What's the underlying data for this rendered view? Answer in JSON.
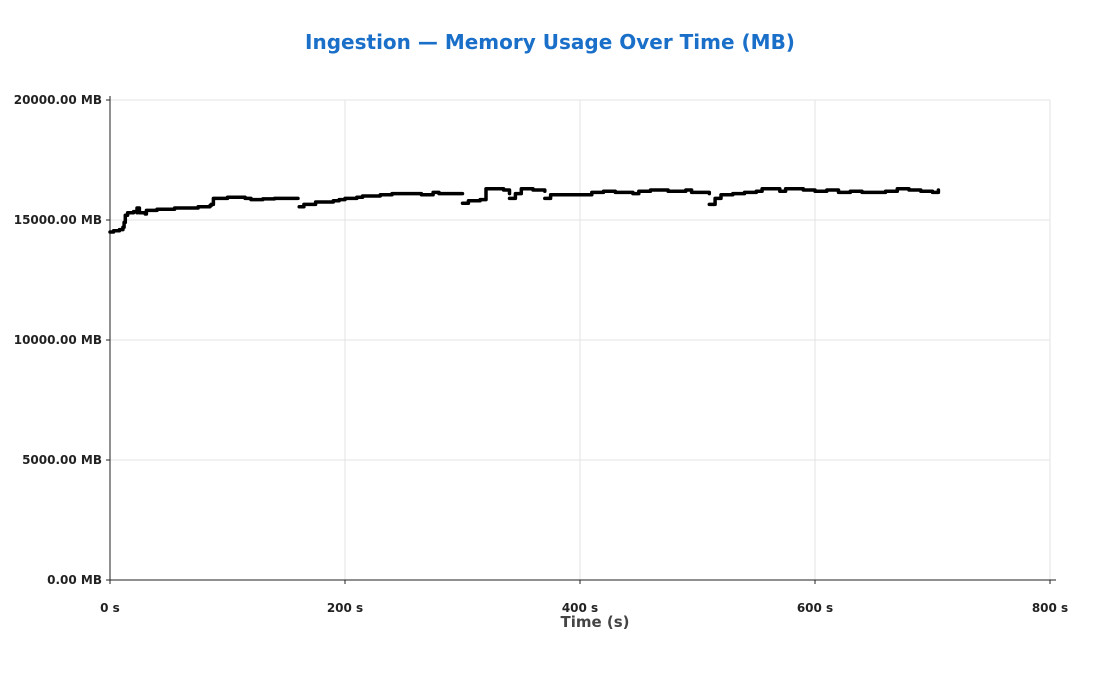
{
  "chart_data": {
    "type": "line",
    "title": "Ingestion — Memory Usage Over Time (MB)",
    "xlabel": "Time (s)",
    "ylabel": "",
    "xlim": [
      0,
      800
    ],
    "ylim": [
      0,
      20000
    ],
    "x_ticks": [
      0,
      200,
      400,
      600,
      800
    ],
    "x_tick_labels": [
      "0 s",
      "200 s",
      "400 s",
      "600 s",
      "800 s"
    ],
    "y_ticks": [
      0,
      5000,
      10000,
      15000,
      20000
    ],
    "y_tick_labels": [
      "0.00 MB",
      "5000.00 MB",
      "10000.00 MB",
      "15000.00 MB",
      "20000.00 MB"
    ],
    "grid": true,
    "colors": {
      "line": "#000000",
      "title": "#1a6fc9"
    },
    "series": [
      {
        "segments": [
          [
            [
              0,
              14500
            ],
            [
              3,
              14550
            ],
            [
              8,
              14600
            ],
            [
              11,
              14700
            ],
            [
              12,
              14900
            ],
            [
              13,
              15200
            ],
            [
              15,
              15300
            ],
            [
              20,
              15350
            ],
            [
              23,
              15300
            ],
            [
              23,
              15500
            ],
            [
              25,
              15300
            ],
            [
              30,
              15250
            ],
            [
              31,
              15400
            ],
            [
              40,
              15450
            ],
            [
              50,
              15450
            ],
            [
              55,
              15500
            ],
            [
              70,
              15500
            ],
            [
              75,
              15550
            ],
            [
              85,
              15600
            ],
            [
              86,
              15650
            ],
            [
              88,
              15650
            ],
            [
              88,
              15900
            ],
            [
              100,
              15950
            ],
            [
              110,
              15950
            ],
            [
              115,
              15900
            ],
            [
              120,
              15850
            ],
            [
              130,
              15880
            ],
            [
              140,
              15900
            ],
            [
              160,
              15900
            ]
          ],
          [
            [
              161,
              15550
            ],
            [
              165,
              15650
            ],
            [
              175,
              15750
            ],
            [
              190,
              15800
            ],
            [
              195,
              15850
            ],
            [
              200,
              15900
            ],
            [
              210,
              15950
            ],
            [
              215,
              16000
            ],
            [
              230,
              16050
            ],
            [
              235,
              16050
            ],
            [
              240,
              16100
            ],
            [
              250,
              16100
            ],
            [
              265,
              16050
            ],
            [
              275,
              16150
            ],
            [
              280,
              16100
            ],
            [
              300,
              16100
            ]
          ],
          [
            [
              300,
              15700
            ],
            [
              305,
              15800
            ],
            [
              315,
              15850
            ],
            [
              320,
              15900
            ],
            [
              320,
              16300
            ],
            [
              330,
              16300
            ],
            [
              335,
              16250
            ],
            [
              340,
              16100
            ]
          ],
          [
            [
              340,
              15900
            ],
            [
              345,
              16100
            ],
            [
              350,
              16300
            ],
            [
              360,
              16250
            ],
            [
              370,
              16200
            ]
          ],
          [
            [
              370,
              15900
            ],
            [
              375,
              16050
            ],
            [
              390,
              16050
            ],
            [
              400,
              16050
            ],
            [
              410,
              16150
            ],
            [
              420,
              16200
            ],
            [
              430,
              16150
            ],
            [
              445,
              16100
            ],
            [
              450,
              16200
            ],
            [
              460,
              16250
            ],
            [
              475,
              16200
            ],
            [
              490,
              16250
            ],
            [
              495,
              16150
            ],
            [
              510,
              16100
            ]
          ],
          [
            [
              510,
              15650
            ],
            [
              515,
              15900
            ],
            [
              520,
              16050
            ],
            [
              530,
              16100
            ],
            [
              540,
              16150
            ],
            [
              550,
              16200
            ],
            [
              555,
              16300
            ],
            [
              570,
              16200
            ],
            [
              575,
              16300
            ],
            [
              590,
              16250
            ],
            [
              600,
              16200
            ],
            [
              610,
              16250
            ],
            [
              620,
              16150
            ],
            [
              630,
              16200
            ],
            [
              640,
              16150
            ],
            [
              660,
              16200
            ],
            [
              670,
              16300
            ],
            [
              680,
              16250
            ],
            [
              690,
              16200
            ],
            [
              700,
              16150
            ],
            [
              705,
              16250
            ]
          ]
        ]
      }
    ]
  }
}
